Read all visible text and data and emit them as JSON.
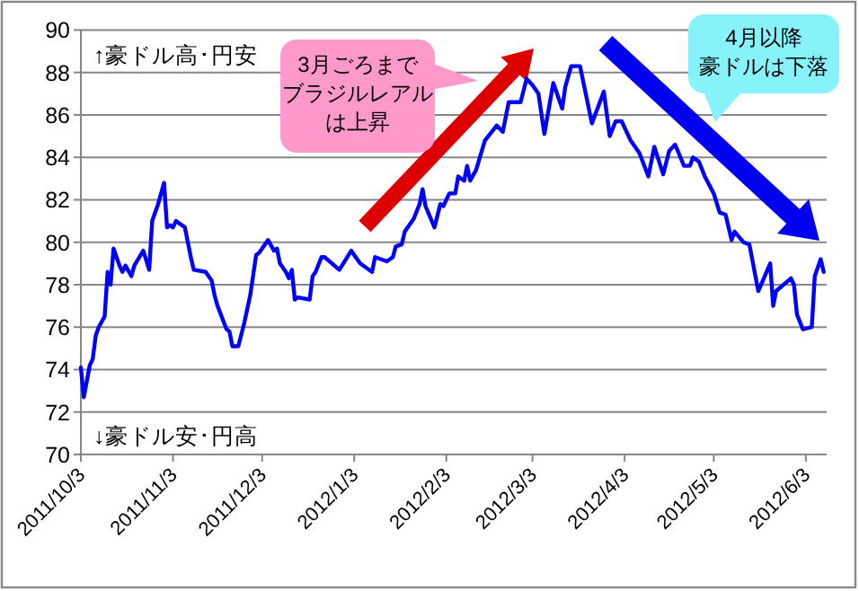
{
  "chart_data": {
    "type": "line",
    "x": [
      "2011-10-03",
      "2011-10-04",
      "2011-10-06",
      "2011-10-07",
      "2011-10-08",
      "2011-10-09",
      "2011-10-11",
      "2011-10-12",
      "2011-10-13",
      "2011-10-14",
      "2011-10-16",
      "2011-10-17",
      "2011-10-18",
      "2011-10-20",
      "2011-10-21",
      "2011-10-24",
      "2011-10-26",
      "2011-10-27",
      "2011-10-29",
      "2011-10-31",
      "2011-11-01",
      "2011-11-02",
      "2011-11-03",
      "2011-11-04",
      "2011-11-07",
      "2011-11-09",
      "2011-11-10",
      "2011-11-14",
      "2011-11-16",
      "2011-11-17",
      "2011-11-18",
      "2011-11-21",
      "2011-11-22",
      "2011-11-23",
      "2011-11-25",
      "2011-11-27",
      "2011-11-29",
      "2011-12-01",
      "2011-12-02",
      "2011-12-05",
      "2011-12-07",
      "2011-12-08",
      "2011-12-09",
      "2011-12-11",
      "2011-12-12",
      "2011-12-13",
      "2011-12-14",
      "2011-12-15",
      "2011-12-19",
      "2011-12-20",
      "2011-12-21",
      "2011-12-23",
      "2011-12-24",
      "2011-12-29",
      "2012-01-02",
      "2012-01-05",
      "2012-01-09",
      "2012-01-10",
      "2012-01-14",
      "2012-01-16",
      "2012-01-17",
      "2012-01-19",
      "2012-01-20",
      "2012-01-23",
      "2012-01-25",
      "2012-01-26",
      "2012-01-27",
      "2012-01-30",
      "2012-02-01",
      "2012-02-02",
      "2012-02-04",
      "2012-02-06",
      "2012-02-07",
      "2012-02-09",
      "2012-02-10",
      "2012-02-11",
      "2012-02-13",
      "2012-02-16",
      "2012-02-20",
      "2012-02-22",
      "2012-02-24",
      "2012-02-28",
      "2012-03-01",
      "2012-03-03",
      "2012-03-05",
      "2012-03-07",
      "2012-03-10",
      "2012-03-13",
      "2012-03-14",
      "2012-03-16",
      "2012-03-19",
      "2012-03-23",
      "2012-03-27",
      "2012-03-29",
      "2012-03-31",
      "2012-04-02",
      "2012-04-05",
      "2012-04-08",
      "2012-04-11",
      "2012-04-13",
      "2012-04-16",
      "2012-04-18",
      "2012-04-20",
      "2012-04-23",
      "2012-04-25",
      "2012-04-26",
      "2012-04-28",
      "2012-04-30",
      "2012-05-03",
      "2012-05-05",
      "2012-05-07",
      "2012-05-09",
      "2012-05-10",
      "2012-05-13",
      "2012-05-15",
      "2012-05-18",
      "2012-05-22",
      "2012-05-23",
      "2012-05-24",
      "2012-05-29",
      "2012-05-30",
      "2012-05-31",
      "2012-06-02",
      "2012-06-05",
      "2012-06-06",
      "2012-06-08",
      "2012-06-09"
    ],
    "series": [
      {
        "color": "#0000ff",
        "values": [
          74.1,
          72.7,
          74.2,
          74.5,
          75.6,
          76.0,
          76.5,
          78.6,
          78.0,
          79.7,
          78.9,
          78.6,
          78.9,
          78.4,
          78.9,
          79.6,
          78.7,
          81.0,
          81.8,
          82.8,
          80.7,
          80.8,
          80.7,
          81.0,
          80.7,
          79.3,
          78.7,
          78.6,
          78.2,
          77.5,
          77.0,
          75.9,
          75.8,
          75.1,
          75.1,
          76.2,
          77.5,
          79.4,
          79.5,
          80.1,
          79.6,
          79.7,
          79.0,
          78.6,
          78.3,
          78.7,
          77.3,
          77.4,
          77.3,
          78.4,
          78.6,
          79.3,
          79.3,
          78.7,
          79.6,
          79.0,
          78.6,
          79.3,
          79.1,
          79.3,
          79.8,
          79.9,
          80.5,
          81.1,
          81.8,
          82.5,
          81.7,
          80.7,
          81.8,
          81.7,
          82.3,
          82.3,
          83.1,
          82.9,
          83.6,
          82.9,
          83.4,
          84.8,
          85.5,
          85.2,
          86.6,
          86.6,
          87.7,
          87.4,
          87.0,
          85.1,
          87.5,
          86.3,
          87.3,
          88.3,
          88.3,
          85.6,
          87.1,
          85.0,
          85.7,
          85.7,
          84.8,
          84.2,
          83.1,
          84.5,
          83.2,
          84.3,
          84.6,
          83.6,
          83.6,
          84.0,
          83.8,
          83.1,
          82.3,
          81.4,
          81.3,
          80.1,
          80.5,
          80.0,
          79.9,
          77.7,
          79.0,
          77.0,
          77.7,
          78.3,
          78.0,
          76.6,
          75.9,
          76.0,
          78.4,
          79.2,
          78.6
        ]
      }
    ],
    "xlim": [
      "2011-10-03",
      "2012-06-10"
    ],
    "xticks": [
      {
        "value": "2011-10-03",
        "label": "2011/10/3"
      },
      {
        "value": "2011-11-03",
        "label": "2011/11/3"
      },
      {
        "value": "2011-12-03",
        "label": "2011/12/3"
      },
      {
        "value": "2012-01-03",
        "label": "2012/1/3"
      },
      {
        "value": "2012-02-03",
        "label": "2012/2/3"
      },
      {
        "value": "2012-03-03",
        "label": "2012/3/3"
      },
      {
        "value": "2012-04-03",
        "label": "2012/4/3"
      },
      {
        "value": "2012-05-03",
        "label": "2012/5/3"
      },
      {
        "value": "2012-06-03",
        "label": "2012/6/3"
      }
    ],
    "ylim": [
      70,
      90
    ],
    "yticks": [
      70,
      72,
      74,
      76,
      78,
      80,
      82,
      84,
      86,
      88,
      90
    ],
    "grid": "y",
    "marker": "none",
    "line_style": "solid",
    "annotations": [
      "↑豪ドル高･円安",
      "↓豪ドル安･円高",
      "3月ごろまで",
      "ブラジルレアル",
      "は上昇",
      "4月以降",
      "豪ドルは下落"
    ]
  }
}
